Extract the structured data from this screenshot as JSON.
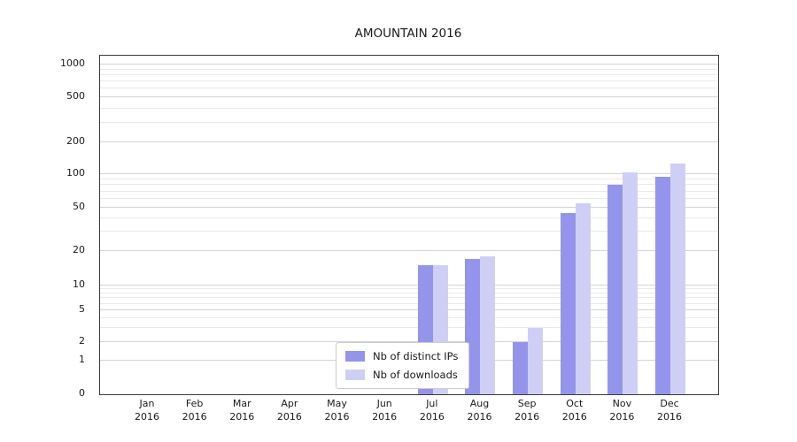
{
  "chart_data": {
    "type": "bar",
    "title": "AMOUNTAIN 2016",
    "xlabel": "",
    "ylabel": "",
    "yscale": "symlog",
    "grid": true,
    "legend_position": "lower-center",
    "ylim": [
      0,
      1100
    ],
    "yticks": [
      0,
      1,
      2,
      5,
      10,
      20,
      50,
      100,
      200,
      500,
      1000
    ],
    "categories": [
      "Jan 2016",
      "Feb 2016",
      "Mar 2016",
      "Apr 2016",
      "May 2016",
      "Jun 2016",
      "Jul 2016",
      "Aug 2016",
      "Sep 2016",
      "Oct 2016",
      "Nov 2016",
      "Dec 2016"
    ],
    "series": [
      {
        "name": "Nb of distinct IPs",
        "color": "#9494ec",
        "values": [
          0,
          0,
          0,
          0,
          0,
          0,
          15,
          17,
          2,
          45,
          80,
          95
        ]
      },
      {
        "name": "Nb of downloads",
        "color": "#cfcff5",
        "values": [
          0,
          0,
          0,
          0,
          0,
          0,
          15,
          18,
          3,
          55,
          105,
          125
        ]
      }
    ]
  }
}
